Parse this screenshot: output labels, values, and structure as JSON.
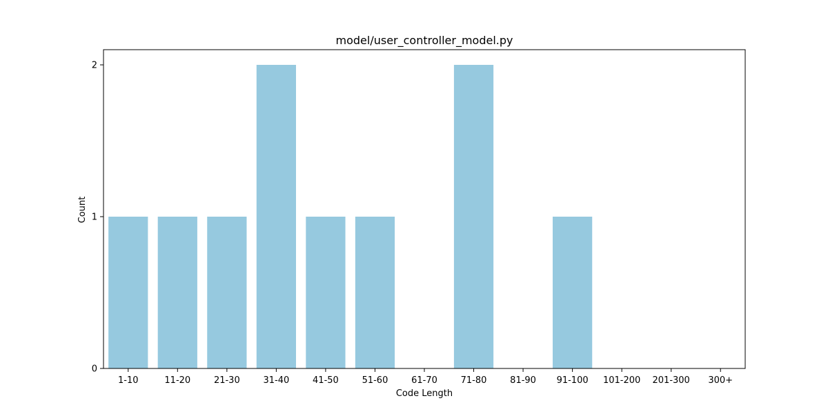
{
  "chart_data": {
    "type": "bar",
    "title": "model/user_controller_model.py",
    "xlabel": "Code Length",
    "ylabel": "Count",
    "categories": [
      "1-10",
      "11-20",
      "21-30",
      "31-40",
      "41-50",
      "51-60",
      "61-70",
      "71-80",
      "81-90",
      "91-100",
      "101-200",
      "201-300",
      "300+"
    ],
    "values": [
      1,
      1,
      1,
      2,
      1,
      1,
      0,
      2,
      0,
      1,
      0,
      0,
      0
    ],
    "ylim": [
      0,
      2.1
    ],
    "yticks": [
      0,
      1,
      2
    ],
    "grid": false,
    "legend": "none",
    "colors": {
      "bar": "#96c9df",
      "axes": "#000000",
      "background": "#ffffff"
    }
  }
}
